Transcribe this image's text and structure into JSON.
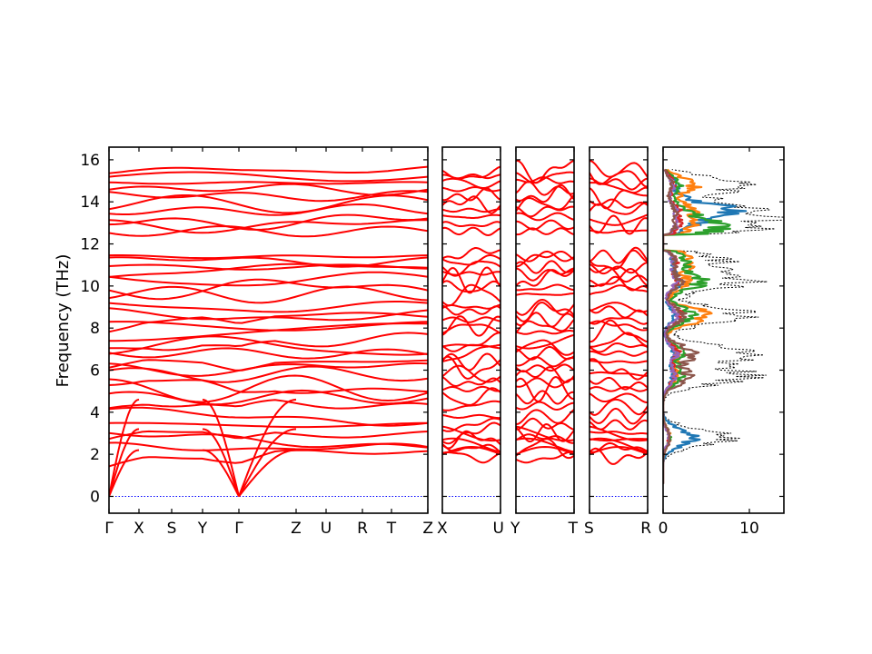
{
  "chart_data": {
    "type": "line",
    "ylabel": "Frequency (THz)",
    "ylim": [
      -0.8,
      16.6
    ],
    "yticks": [
      "0",
      "2",
      "4",
      "6",
      "8",
      "10",
      "12",
      "14",
      "16"
    ],
    "panels": [
      {
        "id": "main",
        "segments": [
          "Γ-X",
          "X-S",
          "S-Y",
          "Y-Γ",
          "Γ-Z",
          "Z-U",
          "U-R",
          "R-T",
          "T-Z"
        ],
        "xtick_labels": [
          "Γ",
          "X",
          "S",
          "Y",
          "Γ",
          "Z",
          "U",
          "R",
          "T",
          "Z"
        ]
      },
      {
        "id": "x-u",
        "xtick_labels": [
          "X",
          "U"
        ]
      },
      {
        "id": "y-t",
        "xtick_labels": [
          "Y",
          "T"
        ]
      },
      {
        "id": "s-r",
        "xtick_labels": [
          "S",
          "R"
        ]
      }
    ],
    "optical_branch_levels_THz": [
      1.9,
      2.3,
      2.7,
      3.0,
      3.4,
      3.8,
      4.3,
      4.7,
      5.1,
      5.4,
      5.8,
      6.1,
      6.4,
      6.8,
      7.1,
      7.4,
      7.8,
      8.1,
      8.4,
      8.8,
      9.0,
      9.6,
      9.9,
      10.3,
      10.6,
      10.9,
      11.2,
      11.4,
      12.6,
      12.9,
      13.3,
      13.6,
      13.9,
      14.3,
      14.6,
      14.9,
      15.2,
      15.5
    ],
    "gaps_THz": [
      [
        9.1,
        9.5
      ],
      [
        11.6,
        12.5
      ]
    ],
    "acoustic_zero_points": [
      "Γ",
      "Γ"
    ],
    "dos": {
      "xlim": [
        0,
        14
      ],
      "xticks": [
        "0",
        "10"
      ],
      "total_line": "black dotted",
      "projected_colors": [
        "#1f77b4",
        "#ff7f0e",
        "#2ca02c",
        "#d62728",
        "#9467bd",
        "#8c564b"
      ],
      "peaks": [
        {
          "freq": 2.8,
          "total": 9.5,
          "proj": [
            4.6,
            1.2,
            1.0,
            0.9,
            0.8,
            1.1
          ]
        },
        {
          "freq": 5.7,
          "total": 11.8,
          "proj": [
            1.5,
            2.1,
            2.6,
            1.8,
            1.6,
            3.8
          ]
        },
        {
          "freq": 6.8,
          "total": 13.8,
          "proj": [
            1.7,
            2.4,
            2.9,
            2.2,
            1.9,
            4.5
          ]
        },
        {
          "freq": 8.6,
          "total": 12.6,
          "proj": [
            1.6,
            6.8,
            4.4,
            2.6,
            2.0,
            3.1
          ]
        },
        {
          "freq": 10.2,
          "total": 12.0,
          "proj": [
            2.4,
            3.4,
            5.6,
            2.0,
            1.8,
            2.5
          ]
        },
        {
          "freq": 11.2,
          "total": 8.4,
          "proj": [
            1.4,
            4.2,
            3.1,
            1.8,
            1.5,
            1.7
          ]
        },
        {
          "freq": 12.8,
          "total": 12.8,
          "proj": [
            2.8,
            3.9,
            8.3,
            1.9,
            1.6,
            1.5
          ]
        },
        {
          "freq": 13.6,
          "total": 13.0,
          "proj": [
            9.4,
            3.6,
            2.6,
            2.0,
            1.7,
            1.5
          ]
        },
        {
          "freq": 14.8,
          "total": 11.3,
          "proj": [
            1.8,
            4.6,
            2.4,
            1.6,
            1.5,
            1.3
          ]
        }
      ]
    }
  }
}
